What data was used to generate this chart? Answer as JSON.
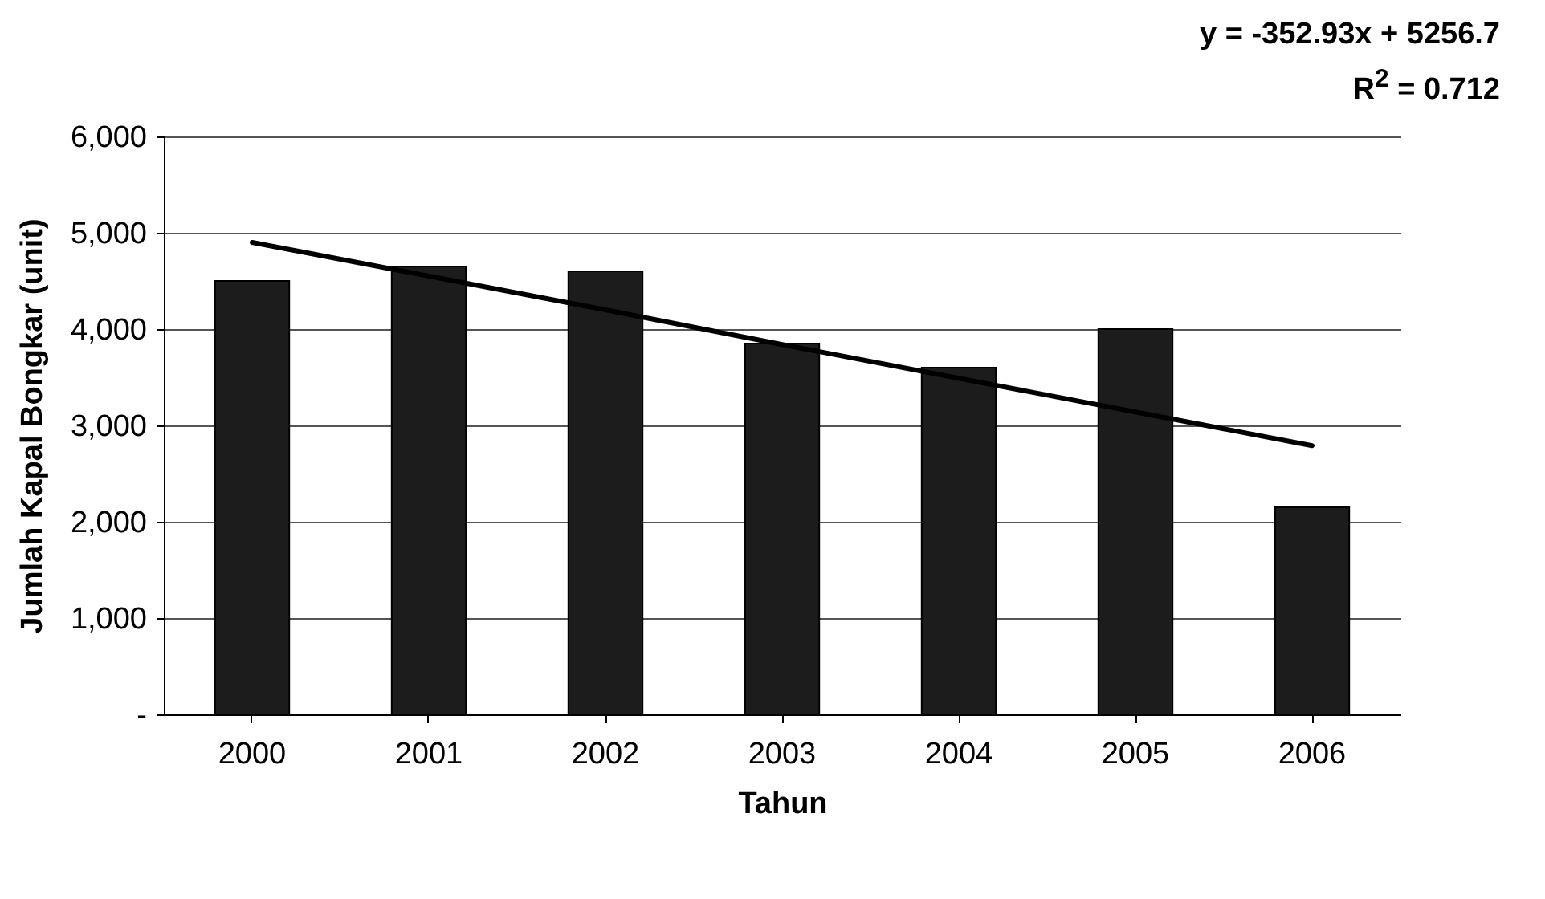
{
  "chart_data": {
    "type": "bar",
    "xlabel": "Tahun",
    "ylabel": "Jumlah Kapal Bongkar (unit)",
    "categories": [
      "2000",
      "2001",
      "2002",
      "2003",
      "2004",
      "2005",
      "2006"
    ],
    "series": [
      {
        "color": "#1c1c1c",
        "values": [
          4500,
          4650,
          4600,
          3850,
          3600,
          4000,
          2150
        ]
      },
      {
        "type": "line",
        "color": "#000000",
        "values": [
          4900,
          4550,
          4200,
          3840,
          3490,
          3140,
          2790
        ]
      }
    ],
    "ylim": [
      0,
      6000
    ],
    "yticks": [
      {
        "value": 0,
        "label": "-"
      },
      {
        "value": 1000,
        "label": "1,000"
      },
      {
        "value": 2000,
        "label": "2,000"
      },
      {
        "value": 3000,
        "label": "3,000"
      },
      {
        "value": 4000,
        "label": "4,000"
      },
      {
        "value": 5000,
        "label": "5,000"
      },
      {
        "value": 6000,
        "label": "6,000"
      }
    ],
    "grid": "y",
    "annotations": [
      "y = -352.93x + 5256.7",
      "R$^{2}$ = 0.712"
    ]
  }
}
